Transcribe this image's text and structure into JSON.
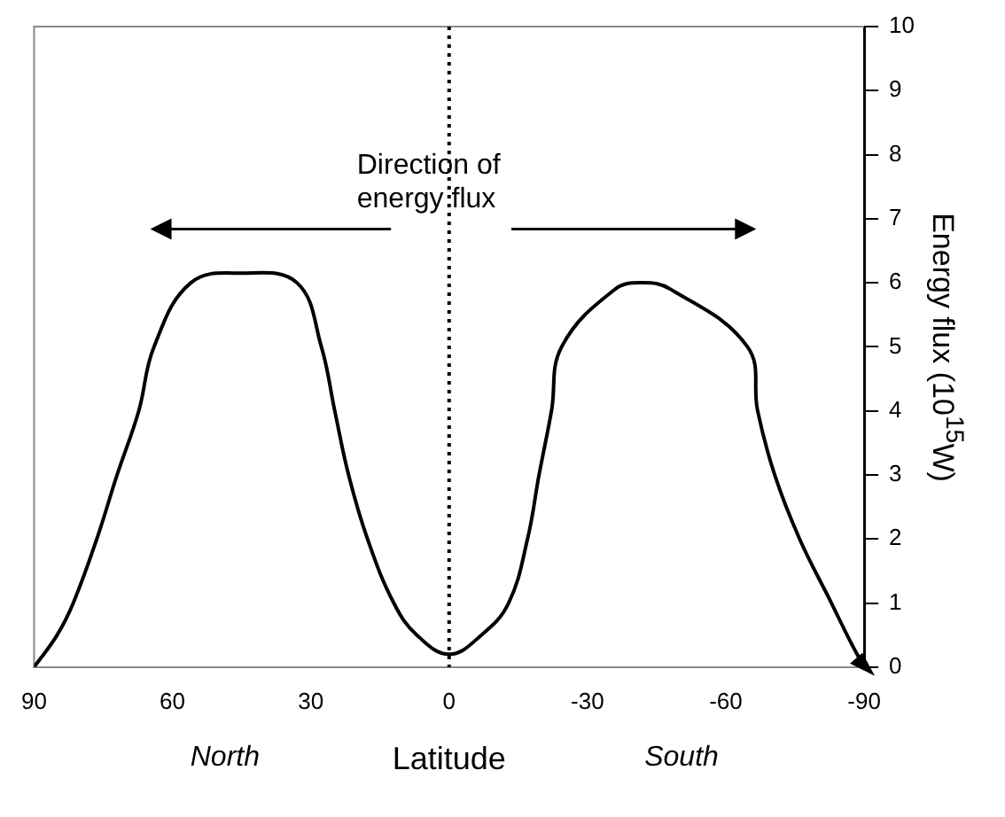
{
  "chart_data": {
    "type": "line",
    "xlabel": "Latitude",
    "ylabel": "Energy flux (10$^{15}$W)",
    "annotations": [
      "Direction of energy flux",
      "North",
      "South"
    ],
    "xlim": [
      90,
      -90
    ],
    "xticks": [
      90,
      60,
      30,
      0,
      -30,
      -60,
      -90
    ],
    "ylim": [
      0,
      10
    ],
    "yticks": [
      0,
      1,
      2,
      3,
      4,
      5,
      6,
      7,
      8,
      9,
      10
    ],
    "grid": false,
    "legend": false,
    "marker": "none",
    "line_style": "solid",
    "ref_lines": [
      {
        "axis": "x",
        "value": 0,
        "color": "#000000",
        "line_style": "dotted"
      }
    ],
    "series": [
      {
        "color": "#000000",
        "x": [
          90,
          85,
          81.5,
          76.4,
          72,
          67.3,
          64,
          56,
          45,
          33,
          27.7,
          24.8,
          21.8,
          17.7,
          12,
          7,
          0,
          -7,
          -12.9,
          -17,
          -19.5,
          -22.2,
          -24.4,
          -36,
          -42,
          -48,
          -64.7,
          -66.9,
          -70.6,
          -76,
          -82.9,
          -87,
          -90
        ],
        "values": [
          0,
          0.5,
          1,
          2,
          3,
          4,
          5,
          6,
          6.15,
          6,
          5,
          4,
          3,
          2,
          1,
          0.5,
          0.2,
          0.5,
          1,
          2,
          3,
          4,
          5,
          5.9,
          6,
          5.9,
          5,
          4,
          3,
          2,
          1,
          0.4,
          0
        ]
      }
    ]
  }
}
